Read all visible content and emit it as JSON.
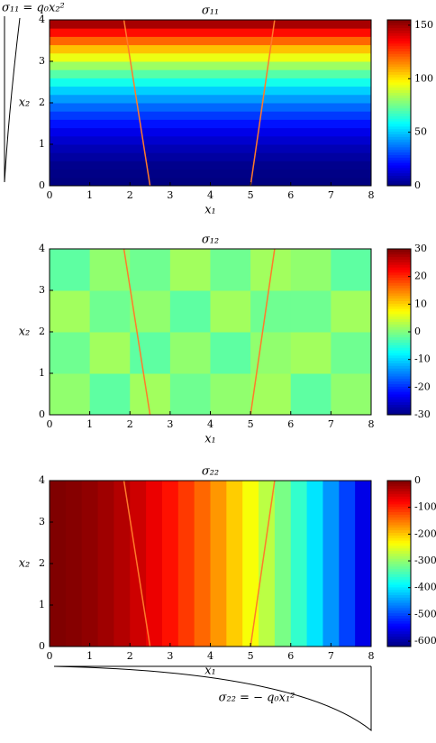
{
  "chart_data": [
    {
      "type": "heatmap",
      "title": "σ₁₁",
      "xlabel": "x₁",
      "ylabel": "x₂",
      "annotation": "σ₁₁ = q₀x₂²",
      "xlim": [
        0,
        8
      ],
      "ylim": [
        0,
        4
      ],
      "xticks": [
        0,
        1,
        2,
        3,
        4,
        5,
        6,
        7,
        8
      ],
      "yticks": [
        0,
        1,
        2,
        3,
        4
      ],
      "xbins": [
        0,
        8
      ],
      "ybins": [
        0,
        0.2,
        0.4,
        0.6,
        0.8,
        1,
        1.2,
        1.4,
        1.6,
        1.8,
        2,
        2.2,
        2.4,
        2.6,
        2.8,
        3,
        3.2,
        3.4,
        3.6,
        3.8,
        4
      ],
      "z": [
        [
          0
        ],
        [
          1
        ],
        [
          2
        ],
        [
          5
        ],
        [
          8
        ],
        [
          12
        ],
        [
          16
        ],
        [
          22
        ],
        [
          28
        ],
        [
          35
        ],
        [
          43
        ],
        [
          51
        ],
        [
          61
        ],
        [
          71
        ],
        [
          82
        ],
        [
          94
        ],
        [
          106
        ],
        [
          120
        ],
        [
          134
        ],
        [
          149
        ]
      ],
      "clim": [
        0,
        155
      ],
      "cticks": [
        0,
        50,
        100,
        150
      ],
      "colormap": "jet",
      "lines": [
        {
          "x": [
            2.5,
            1.85
          ],
          "y": [
            0,
            4
          ]
        },
        {
          "x": [
            5.0,
            5.6
          ],
          "y": [
            0,
            4
          ]
        }
      ],
      "line_color": "#ff7a2a"
    },
    {
      "type": "heatmap",
      "title": "σ₁₂",
      "xlabel": "x₁",
      "ylabel": "x₂",
      "xlim": [
        0,
        8
      ],
      "ylim": [
        0,
        4
      ],
      "xticks": [
        0,
        1,
        2,
        3,
        4,
        5,
        6,
        7,
        8
      ],
      "yticks": [
        0,
        1,
        2,
        3,
        4
      ],
      "xbins": [
        0,
        1,
        2,
        3,
        4,
        5,
        6,
        7,
        8
      ],
      "ybins": [
        0,
        1,
        2,
        3,
        4
      ],
      "z": [
        [
          1,
          -2,
          2,
          -1,
          1,
          2,
          -2,
          1
        ],
        [
          -1,
          2,
          -2,
          1,
          -2,
          1,
          2,
          -1
        ],
        [
          2,
          -1,
          1,
          -2,
          2,
          -1,
          -1,
          2
        ],
        [
          -2,
          1,
          -1,
          2,
          -1,
          2,
          1,
          -2
        ]
      ],
      "clim": [
        -30,
        30
      ],
      "cticks": [
        -30,
        -20,
        -10,
        0,
        10,
        20,
        30
      ],
      "colormap": "jet",
      "lines": [
        {
          "x": [
            2.5,
            1.85
          ],
          "y": [
            0,
            4
          ]
        },
        {
          "x": [
            5.0,
            5.6
          ],
          "y": [
            0,
            4
          ]
        }
      ],
      "line_color": "#ff7a2a"
    },
    {
      "type": "heatmap",
      "title": "σ₂₂",
      "xlabel": "x₁",
      "ylabel": "x₂",
      "annotation": "σ₂₂ = − q₀x₁²",
      "xlim": [
        0,
        8
      ],
      "ylim": [
        0,
        4
      ],
      "xticks": [
        0,
        1,
        2,
        3,
        4,
        5,
        6,
        7,
        8
      ],
      "yticks": [
        0,
        1,
        2,
        3,
        4
      ],
      "xbins": [
        0,
        0.4,
        0.8,
        1.2,
        1.6,
        2,
        2.4,
        2.8,
        3.2,
        3.6,
        4,
        4.4,
        4.8,
        5.2,
        5.6,
        6,
        6.4,
        6.8,
        7.2,
        7.6,
        8
      ],
      "ybins": [
        0,
        4
      ],
      "z": [
        [
          0,
          -4,
          -10,
          -19,
          -31,
          -47,
          -66,
          -87,
          -112,
          -140,
          -169,
          -202,
          -237,
          -274,
          -314,
          -357,
          -403,
          -452,
          -503,
          -557
        ]
      ],
      "clim": [
        -620,
        0
      ],
      "cticks": [
        -600,
        -500,
        -400,
        -300,
        -200,
        -100,
        0
      ],
      "colormap": "jet",
      "lines": [
        {
          "x": [
            2.5,
            1.85
          ],
          "y": [
            0,
            4
          ]
        },
        {
          "x": [
            5.0,
            5.6
          ],
          "y": [
            0,
            4
          ]
        }
      ],
      "line_color": "#ff7a2a"
    }
  ]
}
